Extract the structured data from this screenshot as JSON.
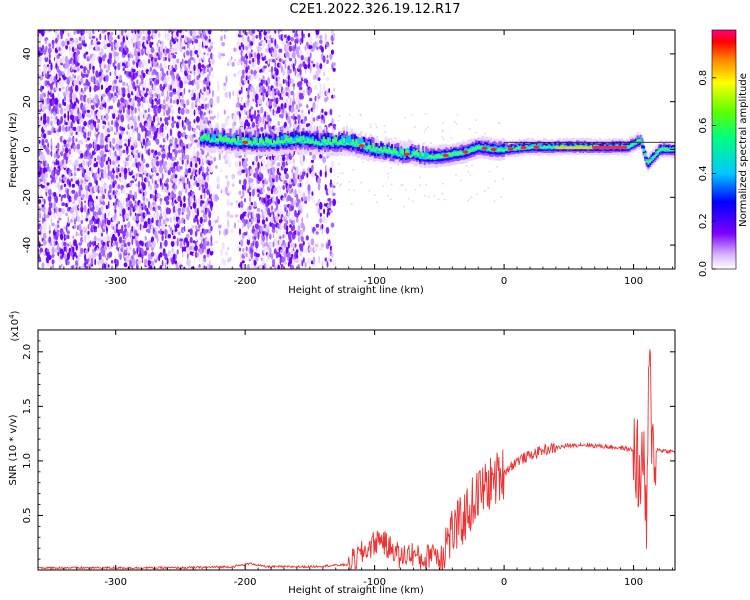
{
  "title": "C2E1.2022.326.19.12.R17",
  "chart_data": [
    {
      "type": "heatmap",
      "xlabel": "Height of straight line (km)",
      "ylabel": "Frequency (Hz)",
      "xlim": [
        -360,
        132
      ],
      "ylim": [
        -50,
        50
      ],
      "x_ticks": [
        -300,
        -200,
        -100,
        0,
        100
      ],
      "y_ticks": [
        -40,
        -20,
        0,
        20,
        40
      ],
      "colorbar": {
        "label": "Normalized spectral amplitude",
        "range": [
          0.0,
          1.0
        ],
        "ticks": [
          "0.0",
          "0.2",
          "0.4",
          "0.6",
          "0.8"
        ]
      },
      "ridge": {
        "x": [
          -235,
          -220,
          -200,
          -180,
          -160,
          -140,
          -120,
          -100,
          -90,
          -80,
          -70,
          -60,
          -50,
          -40,
          -30,
          -20,
          -10,
          0,
          20,
          40,
          60,
          80,
          95,
          105,
          110,
          120,
          132
        ],
        "freq": [
          5,
          4,
          3,
          3,
          4,
          3,
          3,
          0,
          -1,
          -2,
          -2,
          -3,
          -3,
          -2,
          -1,
          1,
          0,
          0,
          1,
          1,
          1,
          1,
          1,
          4,
          -6,
          0,
          0
        ]
      },
      "noise_band_x": [
        -360,
        -130
      ]
    },
    {
      "type": "line",
      "xlabel": "Height of straight line (km)",
      "ylabel": "SNR (10 * v/v)",
      "y_multiplier": "(x10",
      "y_multiplier_exp": "4",
      "y_multiplier_close": ")",
      "xlim": [
        -360,
        132
      ],
      "ylim": [
        0,
        2.2
      ],
      "x_ticks": [
        -300,
        -200,
        -100,
        0,
        100
      ],
      "y_ticks": [
        "0.5",
        "1.0",
        "1.5",
        "2.0"
      ],
      "color": "#ee3333",
      "series": [
        {
          "x": [
            -360,
            -300,
            -250,
            -210,
            -195,
            -185,
            -150,
            -120,
            -110,
            -100,
            -95,
            -90,
            -85,
            -80,
            -75,
            -70,
            -65,
            -60,
            -55,
            -50,
            -45,
            -40,
            -35,
            -30,
            -25,
            -20,
            -15,
            -10,
            -5,
            0,
            10,
            20,
            30,
            40,
            50,
            60,
            70,
            80,
            90,
            100,
            103,
            106,
            108,
            110,
            112,
            115,
            120,
            132
          ],
          "y": [
            0.02,
            0.02,
            0.02,
            0.03,
            0.06,
            0.03,
            0.03,
            0.05,
            0.15,
            0.25,
            0.3,
            0.2,
            0.2,
            0.1,
            0.15,
            0.15,
            0.1,
            0.1,
            0.2,
            0.1,
            0.25,
            0.35,
            0.4,
            0.5,
            0.6,
            0.7,
            0.75,
            0.8,
            0.85,
            0.9,
            1.0,
            1.05,
            1.1,
            1.12,
            1.14,
            1.15,
            1.14,
            1.13,
            1.12,
            1.1,
            1.0,
            0.7,
            1.2,
            0.2,
            1.9,
            1.1,
            1.1,
            1.08
          ]
        }
      ]
    }
  ]
}
